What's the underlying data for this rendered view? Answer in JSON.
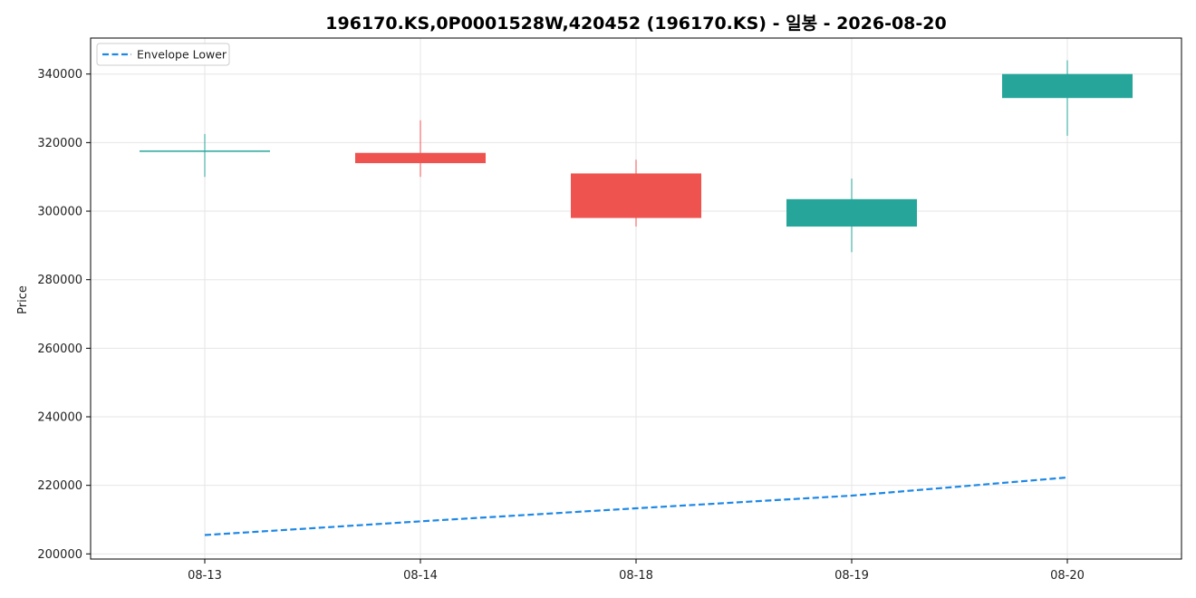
{
  "chart_data": {
    "type": "candlestick",
    "title": "196170.KS,0P0001528W,420452 (196170.KS) - 일봉 - 2026-08-20",
    "xlabel": "",
    "ylabel": "Price",
    "categories": [
      "08-13",
      "08-14",
      "08-18",
      "08-19",
      "08-20"
    ],
    "ylim": [
      198500,
      350500
    ],
    "yticks": [
      200000,
      220000,
      240000,
      260000,
      280000,
      300000,
      320000,
      340000
    ],
    "grid": true,
    "legend": {
      "placement": "top-left",
      "entries": [
        "Envelope Lower"
      ]
    },
    "candles": [
      {
        "date": "08-13",
        "open": 317500,
        "high": 322500,
        "low": 310000,
        "close": 317500
      },
      {
        "date": "08-14",
        "open": 317000,
        "high": 326500,
        "low": 310000,
        "close": 314000
      },
      {
        "date": "08-18",
        "open": 311000,
        "high": 315000,
        "low": 295500,
        "close": 298000
      },
      {
        "date": "08-19",
        "open": 295500,
        "high": 309500,
        "low": 288000,
        "close": 303500
      },
      {
        "date": "08-20",
        "open": 333000,
        "high": 344000,
        "low": 322000,
        "close": 340000
      }
    ],
    "series": [
      {
        "name": "Envelope Lower",
        "style": "dashed",
        "values": [
          205500,
          209500,
          213300,
          217000,
          222300
        ]
      }
    ],
    "colors": {
      "up": "#26a69a",
      "down": "#ef5350",
      "envelope": "#1e88e5",
      "grid": "#e6e6e6",
      "axis": "#000000"
    }
  }
}
